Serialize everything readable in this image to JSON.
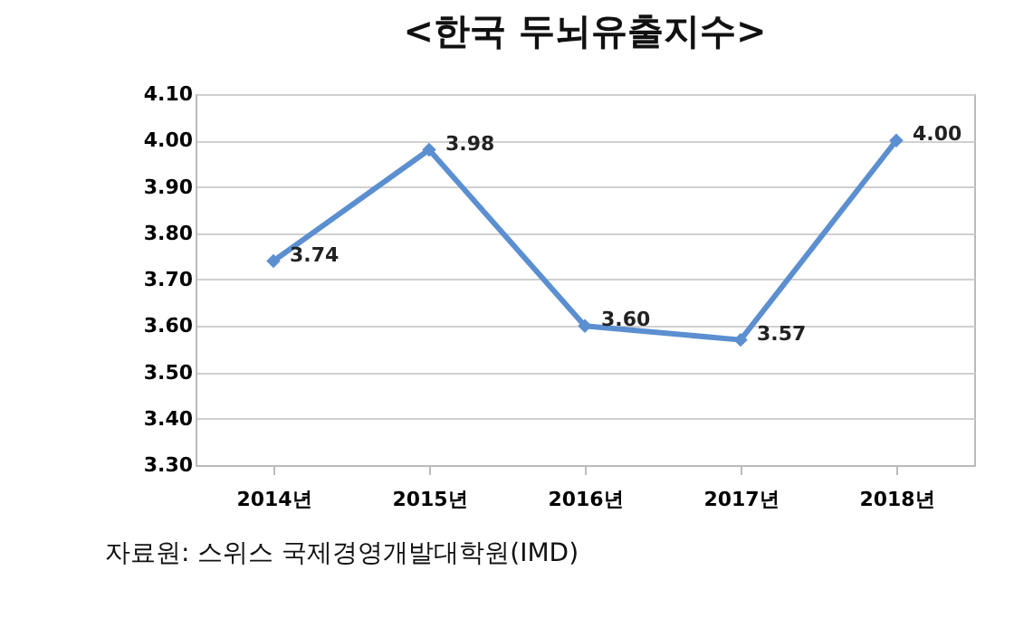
{
  "chart_data": {
    "type": "line",
    "title": "<한국  두뇌유출지수>",
    "categories": [
      "2014년",
      "2015년",
      "2016년",
      "2017년",
      "2018년"
    ],
    "series": [
      {
        "color": "#5b8fd0",
        "values": [
          3.74,
          3.98,
          3.6,
          3.57,
          4.0
        ],
        "value_labels": [
          "3.74",
          "3.98",
          "3.60",
          "3.57",
          "4.00"
        ]
      }
    ],
    "ylim": [
      3.3,
      4.1
    ],
    "yticks": [
      {
        "value": 3.3,
        "label": "3.30"
      },
      {
        "value": 3.4,
        "label": "3.40"
      },
      {
        "value": 3.5,
        "label": "3.50"
      },
      {
        "value": 3.6,
        "label": "3.60"
      },
      {
        "value": 3.7,
        "label": "3.70"
      },
      {
        "value": 3.8,
        "label": "3.80"
      },
      {
        "value": 3.9,
        "label": "3.90"
      },
      {
        "value": 4.0,
        "label": "4.00"
      },
      {
        "value": 4.1,
        "label": "4.10"
      }
    ],
    "grid": "y",
    "marker": "diamond",
    "line_style": "solid",
    "annotations": [
      "자료원: 스위스 국제경영개발대학원(IMD)"
    ]
  }
}
